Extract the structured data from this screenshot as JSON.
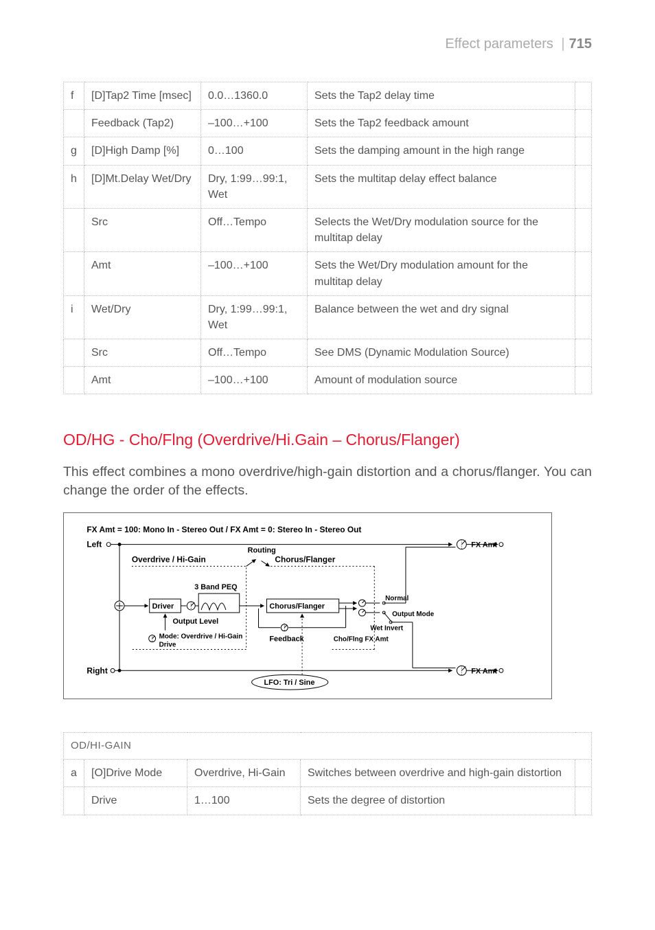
{
  "header": {
    "section": "Effect parameters",
    "page_num": "715"
  },
  "table1_rows": [
    {
      "key": "f",
      "param": "[D]Tap2 Time [msec]",
      "range": "0.0…1360.0",
      "desc": "Sets the Tap2 delay time"
    },
    {
      "key": "",
      "param": "Feedback (Tap2)",
      "range": "–100…+100",
      "desc": "Sets the Tap2 feedback amount"
    },
    {
      "key": "g",
      "param": "[D]High Damp [%]",
      "range": "0…100",
      "desc": "Sets the damping amount in the high range"
    },
    {
      "key": "h",
      "param": "[D]Mt.Delay Wet/Dry",
      "range": "Dry, 1:99…99:1, Wet",
      "desc": "Sets the multitap delay effect balance"
    },
    {
      "key": "",
      "param": "Src",
      "range": "Off…Tempo",
      "desc": "Selects the Wet/Dry modulation source for the multitap delay",
      "justify": true
    },
    {
      "key": "",
      "param": "Amt",
      "range": "–100…+100",
      "desc": "Sets the Wet/Dry modulation amount for the multitap delay"
    },
    {
      "key": "i",
      "param": "Wet/Dry",
      "range": "Dry, 1:99…99:1, Wet",
      "desc": "Balance between the wet and dry signal"
    },
    {
      "key": "",
      "param": "Src",
      "range": "Off…Tempo",
      "desc": "See DMS (Dynamic Modulation Source)",
      "justify": true
    },
    {
      "key": "",
      "param": "Amt",
      "range": "–100…+100",
      "desc": "Amount of modulation source"
    }
  ],
  "section_title": "OD/HG - Cho/Flng (Overdrive/Hi.Gain – Chorus/Flanger)",
  "body_text": "This effect combines a mono overdrive/high-gain distortion and a chorus/flanger. You can change the order of the effects.",
  "diagram": {
    "top_caption": "FX Amt = 100: Mono In - Stereo Out  /  FX Amt = 0: Stereo In - Stereo Out",
    "labels": {
      "left": "Left",
      "right": "Right",
      "fx_amt": "FX Amt",
      "overdrive_higain": "Overdrive / Hi-Gain",
      "chorus_flanger_title": "Chorus/Flanger",
      "routing": "Routing",
      "three_band_peq": "3 Band PEQ",
      "driver": "Driver",
      "chorus_flanger_box": "Chorus/Flanger",
      "output_level": "Output Level",
      "mode_line": "Mode: Overdrive / Hi-Gain",
      "drive": "Drive",
      "feedback": "Feedback",
      "normal": "Normal",
      "output_mode": "Output Mode",
      "wet_invert": "Wet Invert",
      "choflng_fx_amt": "Cho/Flng FX Amt",
      "lfo": "LFO: Tri / Sine"
    },
    "colors": {
      "stroke": "#000000",
      "dash": "#000000",
      "text": "#000000",
      "bg": "#ffffff"
    }
  },
  "table2_header": "OD/HI-GAIN",
  "table2_rows": [
    {
      "key": "a",
      "param": "[O]Drive Mode",
      "range": "Overdrive, Hi-Gain",
      "desc": "Switches between overdrive and high-gain distortion"
    },
    {
      "key": "",
      "param": "Drive",
      "range": "1…100",
      "desc": "Sets the degree of distortion"
    }
  ]
}
